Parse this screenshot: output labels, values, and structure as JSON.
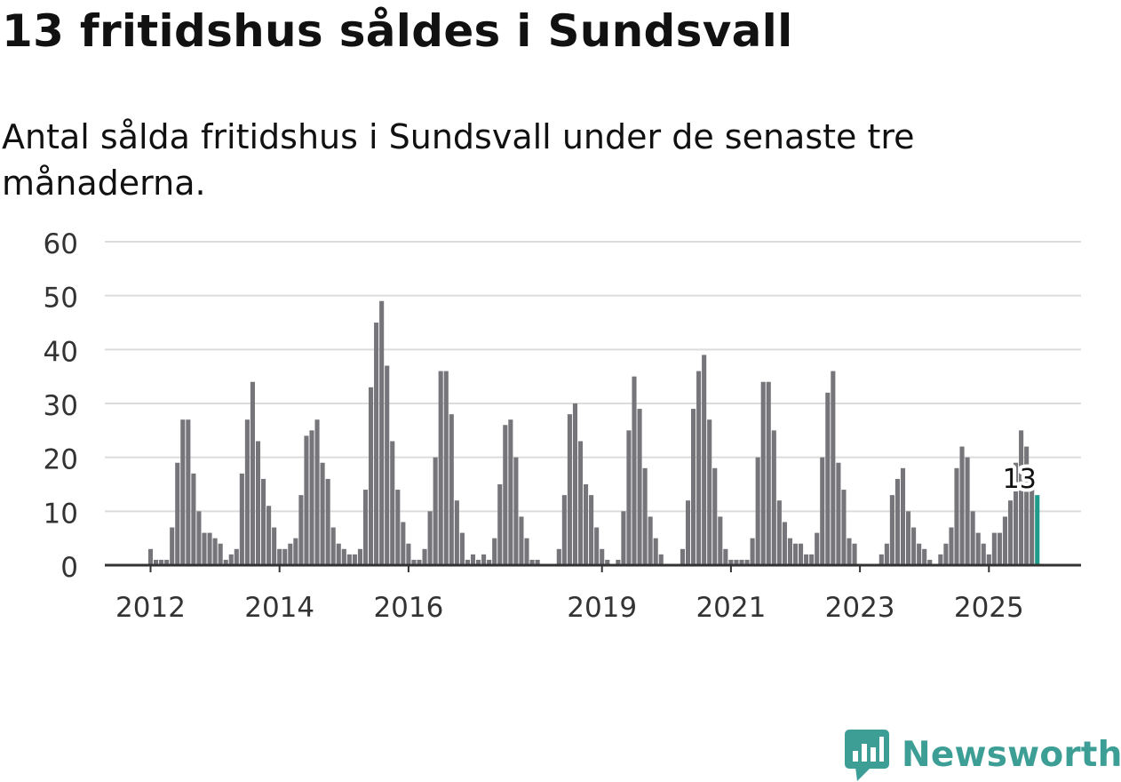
{
  "header": {
    "title": "13 fritidshus såldes i Sundsvall",
    "subtitle": "Antal sålda fritidshus i Sundsvall under de senaste tre månaderna."
  },
  "brand": {
    "name": "Newsworthy",
    "icon": "newsworthy-logo-icon",
    "color": "#3d9e96"
  },
  "colors": {
    "bar": "#76757a",
    "highlight": "#1e9b8a",
    "grid": "#dcdcdc",
    "axis": "#333333",
    "text": "#333333"
  },
  "chart_data": {
    "type": "bar",
    "title": "13 fritidshus såldes i Sundsvall",
    "subtitle": "Antal sålda fritidshus i Sundsvall under de senaste tre månaderna.",
    "xlabel": "",
    "ylabel": "",
    "ylim": [
      0,
      60
    ],
    "yticks": [
      0,
      10,
      20,
      30,
      40,
      50,
      60
    ],
    "xticks": [
      {
        "label": "2012",
        "index": 0
      },
      {
        "label": "2014",
        "index": 24
      },
      {
        "label": "2016",
        "index": 48
      },
      {
        "label": "2019",
        "index": 84
      },
      {
        "label": "2021",
        "index": 108
      },
      {
        "label": "2023",
        "index": 132
      },
      {
        "label": "2025",
        "index": 156
      }
    ],
    "grid": true,
    "start": "2012-01",
    "end": "2025-10",
    "values": [
      3,
      1,
      1,
      1,
      7,
      19,
      27,
      27,
      17,
      10,
      6,
      6,
      5,
      4,
      1,
      2,
      3,
      17,
      27,
      34,
      23,
      16,
      11,
      7,
      3,
      3,
      4,
      5,
      13,
      24,
      25,
      27,
      19,
      16,
      7,
      4,
      3,
      2,
      2,
      3,
      14,
      33,
      45,
      49,
      37,
      23,
      14,
      8,
      4,
      1,
      1,
      3,
      10,
      20,
      36,
      36,
      28,
      12,
      6,
      1,
      2,
      1,
      2,
      1,
      5,
      15,
      26,
      27,
      20,
      9,
      5,
      1,
      1,
      0,
      0,
      0,
      3,
      13,
      28,
      30,
      23,
      15,
      13,
      7,
      3,
      1,
      0,
      1,
      10,
      25,
      35,
      29,
      18,
      9,
      5,
      2,
      0,
      0,
      0,
      3,
      12,
      29,
      36,
      39,
      27,
      18,
      9,
      3,
      1,
      1,
      1,
      1,
      5,
      20,
      34,
      34,
      25,
      12,
      8,
      5,
      4,
      4,
      2,
      2,
      6,
      20,
      32,
      36,
      19,
      14,
      5,
      4,
      0,
      0,
      0,
      0,
      2,
      4,
      13,
      16,
      18,
      10,
      7,
      4,
      3,
      1,
      0,
      2,
      4,
      7,
      18,
      22,
      20,
      10,
      6,
      4,
      2,
      6,
      6,
      9,
      12,
      19,
      25,
      22,
      16,
      13
    ],
    "highlight": {
      "index": 165,
      "value": 13,
      "label": "13"
    }
  }
}
